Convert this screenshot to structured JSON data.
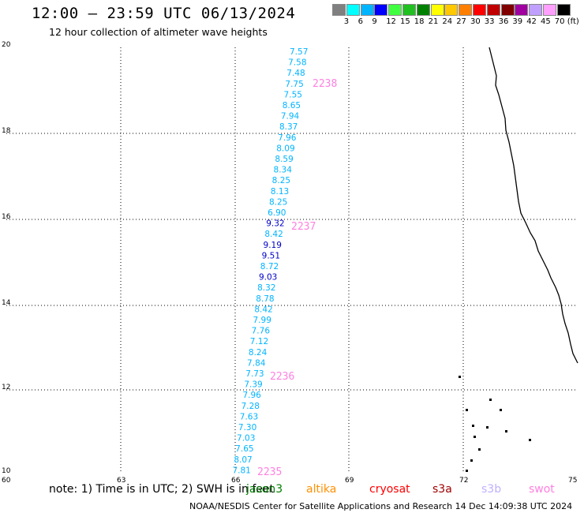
{
  "header": {
    "title": "12:00 – 23:59 UTC 06/13/2024",
    "subtitle": "12 hour collection of altimeter wave heights"
  },
  "colorbar": {
    "colors": [
      "#808080",
      "#00ffff",
      "#00b4ff",
      "#0000ff",
      "#40ff40",
      "#20c020",
      "#008000",
      "#ffff00",
      "#ffc800",
      "#ff8000",
      "#ff0000",
      "#c00000",
      "#800000",
      "#a000a0",
      "#c0a0ff",
      "#ffa0ff",
      "#000000"
    ],
    "ticks": [
      "3",
      "6",
      "9",
      "12",
      "15",
      "18",
      "21",
      "24",
      "27",
      "30",
      "33",
      "36",
      "39",
      "42",
      "45",
      "70 (ft)"
    ]
  },
  "map": {
    "lat_ticks": [
      "20",
      "18",
      "16",
      "14",
      "12",
      "10"
    ],
    "lon_ticks": [
      "60",
      "63",
      "66",
      "69",
      "72",
      "75"
    ],
    "gridline_color": "#000000"
  },
  "wave_heights": [
    {
      "value": "7.57",
      "color": "#00b4ff"
    },
    {
      "value": "7.58",
      "color": "#00b4ff"
    },
    {
      "value": "7.48",
      "color": "#00b4ff"
    },
    {
      "value": "7.75",
      "color": "#00b4ff"
    },
    {
      "value": "7.55",
      "color": "#00b4ff"
    },
    {
      "value": "8.65",
      "color": "#00b4ff"
    },
    {
      "value": "7.94",
      "color": "#00b4ff"
    },
    {
      "value": "8.37",
      "color": "#00b4ff"
    },
    {
      "value": "7.96",
      "color": "#00b4ff"
    },
    {
      "value": "8.09",
      "color": "#00b4ff"
    },
    {
      "value": "8.59",
      "color": "#00b4ff"
    },
    {
      "value": "8.34",
      "color": "#00b4ff"
    },
    {
      "value": "8.25",
      "color": "#00b4ff"
    },
    {
      "value": "8.13",
      "color": "#00b4ff"
    },
    {
      "value": "8.25",
      "color": "#00b4ff"
    },
    {
      "value": "6.90",
      "color": "#00b4ff"
    },
    {
      "value": "9.32",
      "color": "#0000c8"
    },
    {
      "value": "8.42",
      "color": "#00b4ff"
    },
    {
      "value": "9.19",
      "color": "#0000c8"
    },
    {
      "value": "9.51",
      "color": "#0000c8"
    },
    {
      "value": "8.72",
      "color": "#00b4ff"
    },
    {
      "value": "9.03",
      "color": "#0000c8"
    },
    {
      "value": "8.32",
      "color": "#00b4ff"
    },
    {
      "value": "8.78",
      "color": "#00b4ff"
    },
    {
      "value": "8.42",
      "color": "#00b4ff"
    },
    {
      "value": "7.99",
      "color": "#00b4ff"
    },
    {
      "value": "7.76",
      "color": "#00b4ff"
    },
    {
      "value": "7.12",
      "color": "#00b4ff"
    },
    {
      "value": "8.24",
      "color": "#00b4ff"
    },
    {
      "value": "7.84",
      "color": "#00b4ff"
    },
    {
      "value": "7.73",
      "color": "#00b4ff"
    },
    {
      "value": "7.39",
      "color": "#00b4ff"
    },
    {
      "value": "7.96",
      "color": "#00b4ff"
    },
    {
      "value": "7.28",
      "color": "#00b4ff"
    },
    {
      "value": "7.63",
      "color": "#00b4ff"
    },
    {
      "value": "7.30",
      "color": "#00b4ff"
    },
    {
      "value": "7.03",
      "color": "#00b4ff"
    },
    {
      "value": "7.65",
      "color": "#00b4ff"
    },
    {
      "value": "8.07",
      "color": "#00b4ff"
    },
    {
      "value": "7.81",
      "color": "#00b4ff"
    }
  ],
  "time_labels": [
    {
      "text": "2238",
      "color": "#ff80e0"
    },
    {
      "text": "2237",
      "color": "#ff80e0"
    },
    {
      "text": "2236",
      "color": "#ff80e0"
    },
    {
      "text": "2235",
      "color": "#ff80e0"
    }
  ],
  "note": "note: 1) Time is in UTC; 2) SWH is in feet",
  "satellites": [
    {
      "name": "jason3",
      "color": "#008000"
    },
    {
      "name": "altika",
      "color": "#ff9000"
    },
    {
      "name": "cryosat",
      "color": "#ff0000"
    },
    {
      "name": "s3a",
      "color": "#a00000"
    },
    {
      "name": "s3b",
      "color": "#c0b0ff"
    },
    {
      "name": "swot",
      "color": "#ff80e0"
    }
  ],
  "footer": "NOAA/NESDIS Center for Satellite Applications and Research     14 Dec 14:09:38 UTC 2024"
}
